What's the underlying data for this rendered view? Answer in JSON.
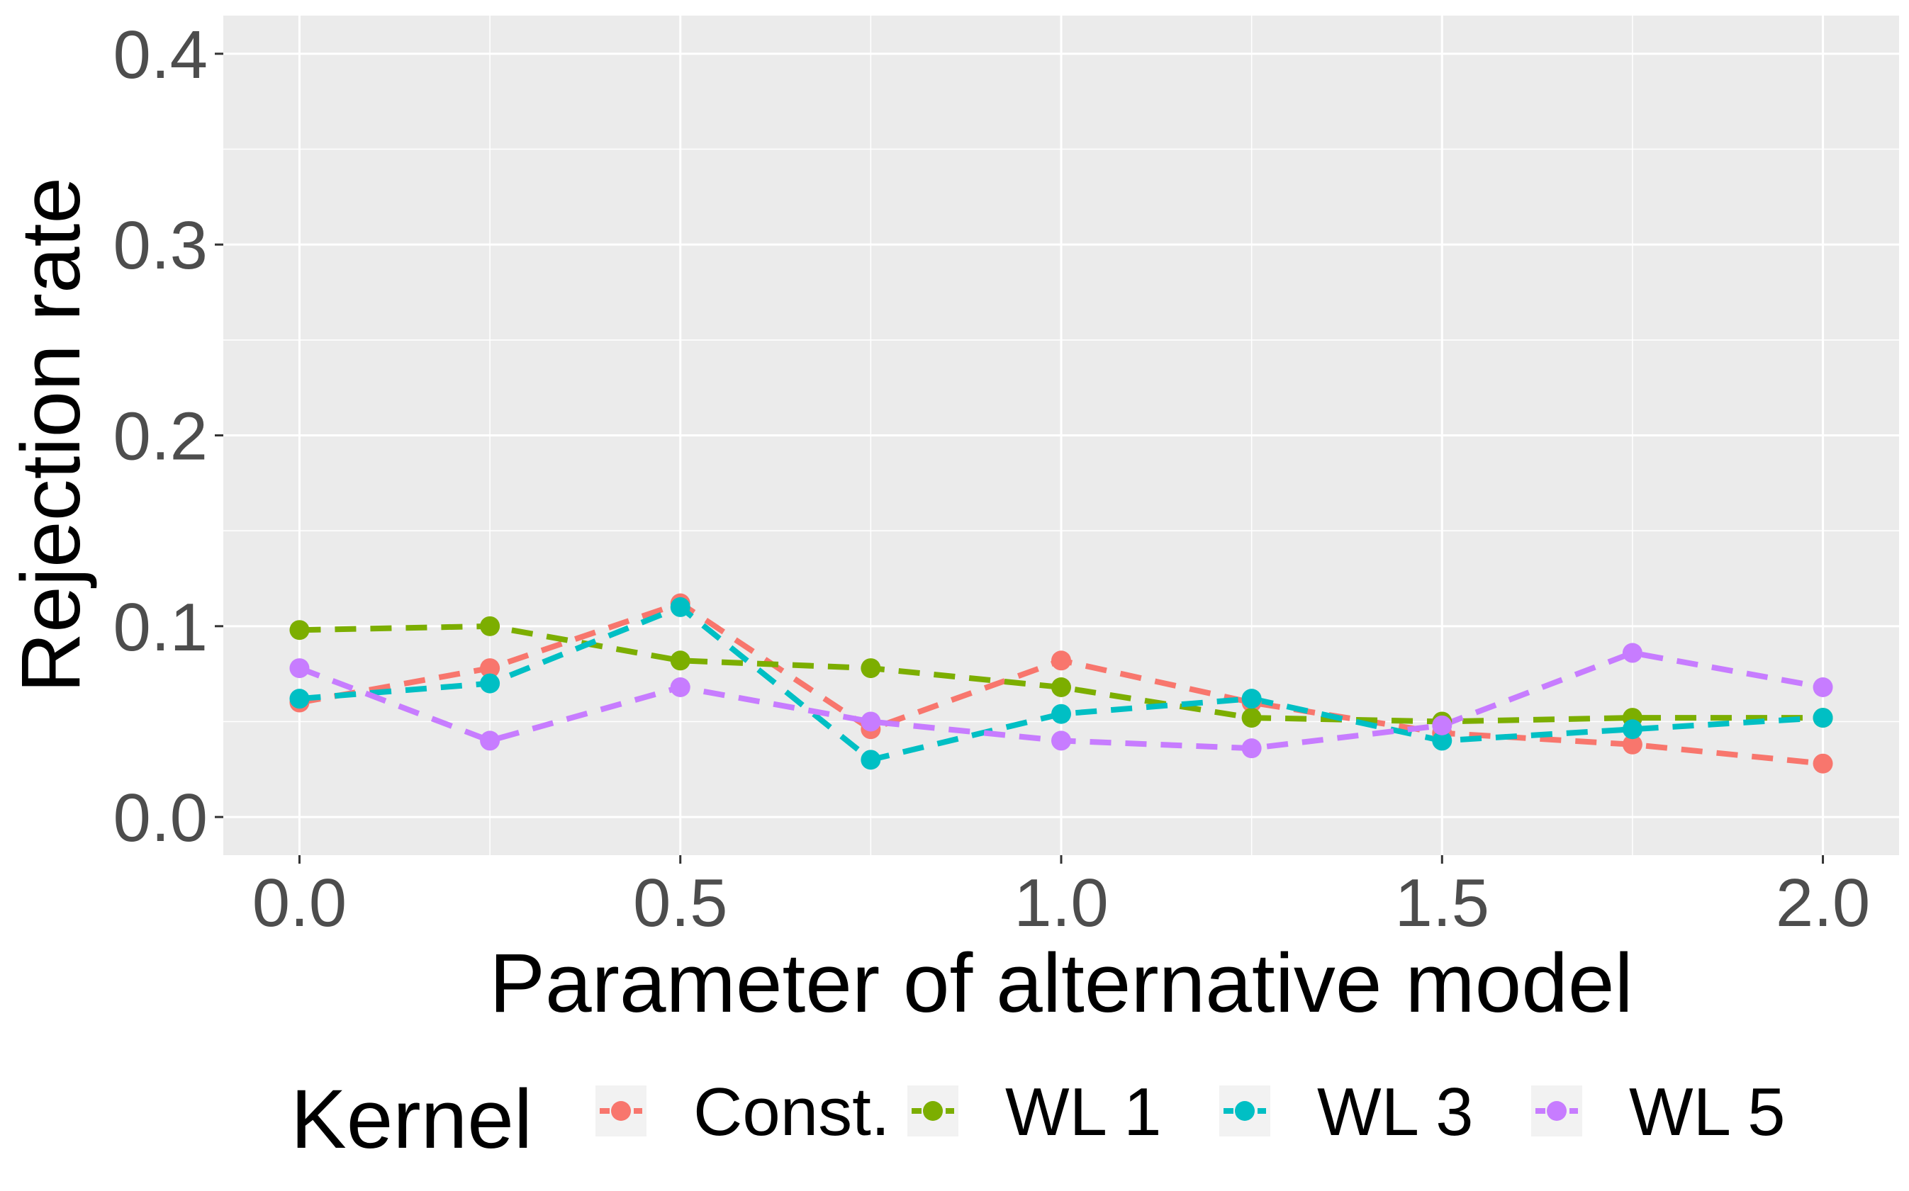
{
  "chart_data": {
    "type": "line",
    "xlabel": "Parameter of alternative model",
    "ylabel": "Rejection rate",
    "x": [
      0,
      0.25,
      0.5,
      0.75,
      1.0,
      1.25,
      1.5,
      1.75,
      2.0
    ],
    "xlim": [
      -0.1,
      2.1
    ],
    "ylim": [
      -0.02,
      0.42
    ],
    "x_ticks": [
      "0.0",
      "0.5",
      "1.0",
      "1.5",
      "2.0"
    ],
    "y_ticks": [
      "0.0",
      "0.1",
      "0.2",
      "0.3",
      "0.4"
    ],
    "grid": true,
    "line_style": "dashed",
    "legend_position": "bottom",
    "legend_title": "Kernel",
    "series": [
      {
        "name": "Const.",
        "color": "#F8766D",
        "values": [
          0.06,
          0.078,
          0.112,
          0.046,
          0.082,
          0.06,
          0.044,
          0.038,
          0.028
        ]
      },
      {
        "name": "WL 1",
        "color": "#7CAE00",
        "values": [
          0.098,
          0.1,
          0.082,
          0.078,
          0.068,
          0.052,
          0.05,
          0.052,
          0.052
        ]
      },
      {
        "name": "WL 3",
        "color": "#00BFC4",
        "values": [
          0.062,
          0.07,
          0.11,
          0.03,
          0.054,
          0.062,
          0.04,
          0.046,
          0.052
        ]
      },
      {
        "name": "WL 5",
        "color": "#C77CFF",
        "values": [
          0.078,
          0.04,
          0.068,
          0.05,
          0.04,
          0.036,
          0.048,
          0.086,
          0.068
        ]
      }
    ]
  }
}
